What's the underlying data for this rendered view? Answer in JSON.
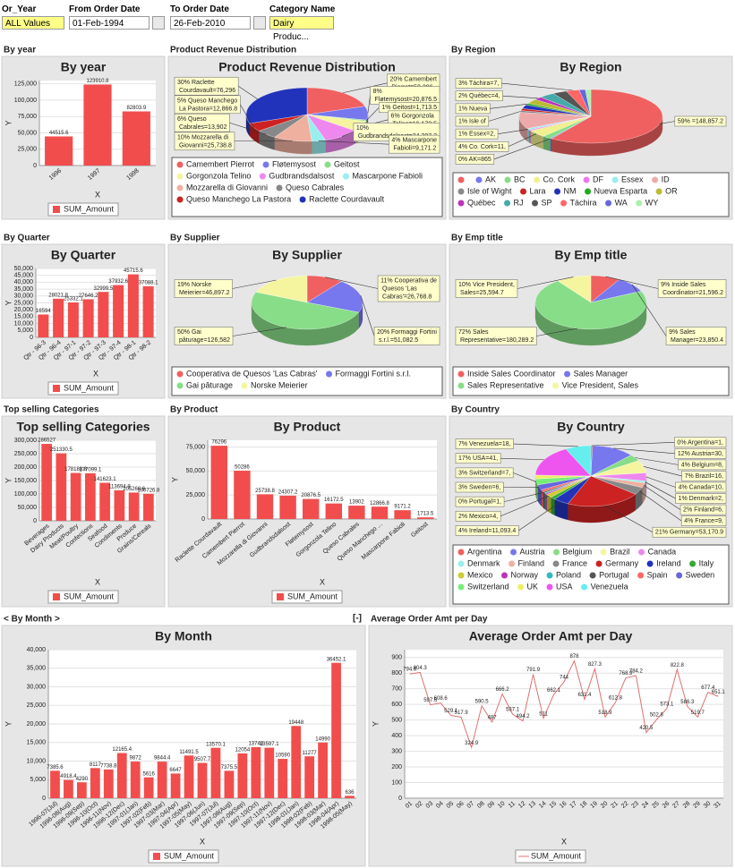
{
  "filters": [
    {
      "label": "Or_Year",
      "value": "ALL Values"
    },
    {
      "label": "From Order Date",
      "value": "01-Feb-1994"
    },
    {
      "label": "To Order Date",
      "value": "26-Feb-2010"
    },
    {
      "label": "Category Name",
      "value": "Dairy Produc..."
    }
  ],
  "chart_data": [
    {
      "type": "bar",
      "heading": "By year",
      "title": "By year",
      "x_label": "X",
      "y_label": "Y",
      "categories": [
        "1996",
        "1997",
        "1998"
      ],
      "series": [
        {
          "name": "SUM_Amount",
          "color": "#f24d4d",
          "values": [
            44515.6,
            123910.8,
            82803.9
          ]
        }
      ],
      "ylim": [
        0,
        130000
      ],
      "yticks": [
        0,
        {
          "value": 25000,
          "label": "25,000"
        },
        {
          "value": 50000,
          "label": "50,000"
        },
        {
          "value": 75000,
          "label": "75,000"
        },
        {
          "value": 100000,
          "label": "100,000"
        },
        {
          "value": 125000,
          "label": "125,000"
        }
      ]
    },
    {
      "type": "pie",
      "heading": "Product Revenue Distribution",
      "title": "Product Revenue Distribution",
      "categories": [
        "Camembert Pierrot",
        "Fløtemysost",
        "Geitost",
        "Gorgonzola Telino",
        "Gudbrandsdalsost",
        "Mascarpone Fabioli",
        "Mozzarella di Giovanni",
        "Queso Cabrales",
        "Queso Manchego La Pastora",
        "Raclette Courdavault"
      ],
      "values": [
        50286,
        20876.5,
        1713.5,
        16172.5,
        24307.2,
        9171.2,
        25738.8,
        13902,
        12866.8,
        76296
      ],
      "value_labels": [
        "20% Camembert Pierrot=50,286",
        "8% Fløtemysost=20,876.5",
        "1% Geitost=1,713.5",
        "6% Gorgonzola Telino=16,172.5",
        "10% Gudbrandsdalsost=24,307.2",
        "4% Mascarpone Fabioli=9,171.2",
        "10% Mozzarella di Giovanni=25,738.8",
        "6% Queso Cabrales=13,902",
        "5% Queso Manchego La Pastora=12,866.8",
        "30% Raclette Courdavault=76,296"
      ],
      "colors": [
        "#f06060",
        "#7777ee",
        "#88dd88",
        "#f5f5a0",
        "#ee88ee",
        "#99eeee",
        "#f0b0a0",
        "#888888",
        "#cc2222",
        "#2233bb"
      ]
    },
    {
      "type": "pie",
      "heading": "By Region",
      "title": "By Region",
      "categories": [
        null,
        "AK",
        "BC",
        "Co. Cork",
        "DF",
        "Essex",
        "ID",
        "Isle of Wight",
        "Lara",
        "NM",
        "Nueva Esparta",
        "OR",
        "Québec",
        "RJ",
        "SP",
        "Táchira",
        "WA",
        "WY"
      ],
      "values": [
        148857.2,
        865,
        5000,
        11000,
        1500,
        2200,
        25000,
        2700,
        3000,
        6000,
        2600,
        7000,
        4500,
        9000,
        8000,
        7400,
        3500,
        3100
      ],
      "value_labels": [
        "59% =148,857.2",
        "0% AK=865",
        null,
        "4% Co. Cork=11,",
        null,
        "1% Essex=2,",
        null,
        "1% Isle of",
        null,
        null,
        "1% Nueva",
        null,
        "2% Québec=4,",
        null,
        null,
        "3% Táchira=7,",
        null,
        null
      ],
      "colors": [
        "#f06060",
        "#7777ee",
        "#88dd88",
        "#f0f090",
        "#ee77ee",
        "#99eeee",
        "#eeaaaa",
        "#888888",
        "#cc2222",
        "#2233bb",
        "#22aa22",
        "#bbbb33",
        "#bb33bb",
        "#44aaaa",
        "#555555",
        "#ff6666",
        "#6666dd",
        "#aaf0aa"
      ]
    },
    {
      "type": "bar",
      "heading": "By Quarter",
      "title": "By Quarter",
      "x_label": "X",
      "y_label": "Y",
      "categories": [
        "Qtr - 96-3",
        "Qtr - 96-4",
        "Qtr - 97-1",
        "Qtr - 97-2",
        "Qtr - 97-3",
        "Qtr - 97-4",
        "Qtr - 98-1",
        "Qtr - 98-2"
      ],
      "series": [
        {
          "name": "SUM_Amount",
          "color": "#f24d4d",
          "values": [
            16594,
            28021.8,
            25332.1,
            27646.2,
            32999.5,
            37932.6,
            45715.6,
            37088.1
          ]
        }
      ],
      "ylim": [
        0,
        50000
      ],
      "yticks": [
        0,
        {
          "value": 5000,
          "label": "5,000"
        },
        {
          "value": 10000,
          "label": "10,000"
        },
        {
          "value": 15000,
          "label": "15,000"
        },
        {
          "value": 20000,
          "label": "20,000"
        },
        {
          "value": 25000,
          "label": "25,000"
        },
        {
          "value": 30000,
          "label": "30,000"
        },
        {
          "value": 35000,
          "label": "35,000"
        },
        {
          "value": 40000,
          "label": "40,000"
        },
        {
          "value": 45000,
          "label": "45,000"
        },
        {
          "value": 50000,
          "label": "50,000"
        }
      ]
    },
    {
      "type": "pie",
      "heading": "By Supplier",
      "title": "By Supplier",
      "categories": [
        "Cooperativa de Quesos 'Las Cabras'",
        "Formaggi Fortini s.r.l.",
        "Gai pâturage",
        "Norske Meierier"
      ],
      "values": [
        26768.8,
        51082.5,
        126582,
        46897.2
      ],
      "value_labels": [
        "11% Cooperativa de Quesos 'Las Cabras'=26,768.8",
        "20% Formaggi Fortini s.r.l.=51,082.5",
        "50% Gai pâturage=126,582",
        "19% Norske Meierier=46,897.2"
      ],
      "colors": [
        "#f06060",
        "#7777ee",
        "#88dd88",
        "#f5f5a0"
      ]
    },
    {
      "type": "pie",
      "heading": "By Emp title",
      "title": "By Emp title",
      "categories": [
        "Inside Sales Coordinator",
        "Sales Manager",
        "Sales Representative",
        "Vice President, Sales"
      ],
      "values": [
        21596.2,
        23850.4,
        180289.2,
        25594.7
      ],
      "value_labels": [
        "9% Inside Sales Coordinator=21,596.2",
        "9% Sales Manager=23,850.4",
        "72% Sales Representative=180,289.2",
        "10% Vice President, Sales=25,594.7"
      ],
      "colors": [
        "#f06060",
        "#7777ee",
        "#88dd88",
        "#f5f5a0"
      ]
    },
    {
      "type": "bar",
      "heading": "Top selling Categories",
      "title": "Top selling Categories",
      "x_label": "X",
      "y_label": "Y",
      "categories": [
        "Beverages",
        "Dairy Products",
        "Meat/Poultry",
        "Confections",
        "Seafood",
        "Condiments",
        "Produce",
        "Grains/Cereals"
      ],
      "series": [
        {
          "name": "SUM_Amount",
          "color": "#f24d4d",
          "values": [
            286527,
            251330.5,
            178188.8,
            177099.1,
            141623.1,
            113694.8,
            105268.6,
            100726.8
          ]
        }
      ],
      "ylim": [
        0,
        300000
      ],
      "yticks": [
        0,
        {
          "value": 50000,
          "label": "50,000"
        },
        {
          "value": 100000,
          "label": "100,000"
        },
        {
          "value": 150000,
          "label": "150,000"
        },
        {
          "value": 200000,
          "label": "200,000"
        },
        {
          "value": 250000,
          "label": "250,000"
        },
        {
          "value": 300000,
          "label": "300,000"
        }
      ]
    },
    {
      "type": "bar",
      "heading": "By Product",
      "title": "By Product",
      "x_label": "X",
      "y_label": "Y",
      "categories": [
        "Raclette Courdavault",
        "Camembert Pierrot",
        "Mozzarella di Giovanni",
        "Gudbrandsdalsost",
        "Fløtemysost",
        "Gorgonzola Telino",
        "Queso Cabrales",
        "Queso Manchego ...",
        "Mascarpone Fabioli",
        "Geitost"
      ],
      "series": [
        {
          "name": "SUM_Amount",
          "color": "#f24d4d",
          "values": [
            76296,
            50286,
            25738.8,
            24307.2,
            20876.5,
            16172.5,
            13902,
            12866.8,
            9171.2,
            1713.5
          ]
        }
      ],
      "ylim": [
        0,
        82000
      ],
      "yticks": [
        0,
        {
          "value": 25000,
          "label": "25,000"
        },
        {
          "value": 50000,
          "label": "50,000"
        },
        {
          "value": 75000,
          "label": "75,000"
        }
      ]
    },
    {
      "type": "pie",
      "heading": "By Country",
      "title": "By Country",
      "categories": [
        "Argentina",
        "Austria",
        "Belgium",
        "Brazil",
        "Canada",
        "Denmark",
        "Finland",
        "France",
        "Germany",
        "Ireland",
        "Italy",
        "Mexico",
        "Norway",
        "Poland",
        "Portugal",
        "Spain",
        "Sweden",
        "Switzerland",
        "UK",
        "USA",
        "Venezuela"
      ],
      "values": [
        1200,
        30500,
        8900,
        16800,
        10500,
        2600,
        6200,
        9800,
        53170.9,
        11093.4,
        3500,
        4700,
        1500,
        1000,
        1600,
        2900,
        6900,
        7800,
        5000,
        41800,
        18400
      ],
      "value_labels": [
        "0% Argentina=1,",
        "12% Austria=30,",
        "4% Belgium=8,",
        "7% Brazil=16,",
        "4% Canada=10,",
        "1% Denmark=2,",
        "2% Finland=6,",
        "4% France=9,",
        "21% Germany=53,170.9",
        "4% Ireland=11,093.4",
        null,
        "2% Mexico=4,",
        null,
        null,
        "0% Portugal=1,",
        null,
        "3% Sweden=6,",
        "3% Switzerland=7,",
        null,
        "17% USA=41,",
        "7% Venezuela=18,"
      ],
      "colors": [
        "#f06060",
        "#7777ee",
        "#88dd88",
        "#f5f5a0",
        "#ee88ee",
        "#99eeee",
        "#f0b0a0",
        "#888888",
        "#cc2222",
        "#2233bb",
        "#33aa33",
        "#cccc33",
        "#bb33bb",
        "#33bbbb",
        "#555555",
        "#ff6666",
        "#6666dd",
        "#77ee77",
        "#eeee66",
        "#ee55ee",
        "#66eeee"
      ]
    },
    {
      "type": "bar",
      "heading": "< By Month >",
      "toggle": "[-]",
      "title": "By Month",
      "x_label": "X",
      "y_label": "Y",
      "categories": [
        "1996-07(Jul)",
        "1996-08(Aug)",
        "1996-09(Sep)",
        "1996-10(Oct)",
        "1996-11(Nov)",
        "1996-12(Dec)",
        "1997-01(Jan)",
        "1997-02(Feb)",
        "1997-03(Mar)",
        "1997-04(Apr)",
        "1997-05(May)",
        "1997-06(Jun)",
        "1997-07(Jul)",
        "1997-08(Aug)",
        "1997-09(Sep)",
        "1997-10(Oct)",
        "1997-11(Nov)",
        "1997-12(Dec)",
        "1998-01(Jan)",
        "1998-02(Feb)",
        "1998-03(Mar)",
        "1998-04(Apr)",
        "1998-05(May)"
      ],
      "series": [
        {
          "name": "SUM_Amount",
          "color": "#f24d4d",
          "values": [
            7385.6,
            4918.4,
            4290,
            8117,
            7738.8,
            12165.4,
            9872,
            5616,
            9844.4,
            6647,
            11491.5,
            9507.7,
            13570.1,
            7375.5,
            12054,
            13748,
            13597.1,
            10590,
            19448,
            11277,
            14990,
            36452.1,
            636
          ]
        }
      ],
      "ylim": [
        0,
        40000
      ],
      "yticks": [
        0,
        {
          "value": 5000,
          "label": "5,000"
        },
        {
          "value": 10000,
          "label": "10,000"
        },
        {
          "value": 15000,
          "label": "15,000"
        },
        {
          "value": 20000,
          "label": "20,000"
        },
        {
          "value": 25000,
          "label": "25,000"
        },
        {
          "value": 30000,
          "label": "30,000"
        },
        {
          "value": 35000,
          "label": "35,000"
        },
        {
          "value": 40000,
          "label": "40,000"
        }
      ]
    },
    {
      "type": "line",
      "heading": "Average Order Amt per Day",
      "title": "Average Order Amt per Day",
      "x_label": "X",
      "y_label": "Y",
      "categories": [
        "01",
        "02",
        "03",
        "04",
        "05",
        "06",
        "07",
        "08",
        "09",
        "10",
        "11",
        "12",
        "13",
        "14",
        "15",
        "16",
        "17",
        "18",
        "19",
        "20",
        "21",
        "22",
        "23",
        "24",
        "25",
        "26",
        "27",
        "28",
        "29",
        "30",
        "31"
      ],
      "series": [
        {
          "name": "SUM_Amount",
          "color": "#e07070",
          "values": [
            794.6,
            804.3,
            597.6,
            608.6,
            529.1,
            517.9,
            324.9,
            590.5,
            487,
            666.2,
            537.1,
            494.2,
            791.9,
            511,
            662.1,
            744,
            878,
            631.4,
            827.3,
            518.9,
            612.8,
            768.9,
            784.2,
            420.5,
            502.8,
            573.1,
            822.8,
            586.3,
            519.7,
            677.4,
            651.1
          ]
        }
      ],
      "ylim": [
        0,
        950
      ],
      "yticks": [
        0,
        100,
        200,
        300,
        400,
        500,
        600,
        700,
        800,
        900
      ]
    }
  ]
}
